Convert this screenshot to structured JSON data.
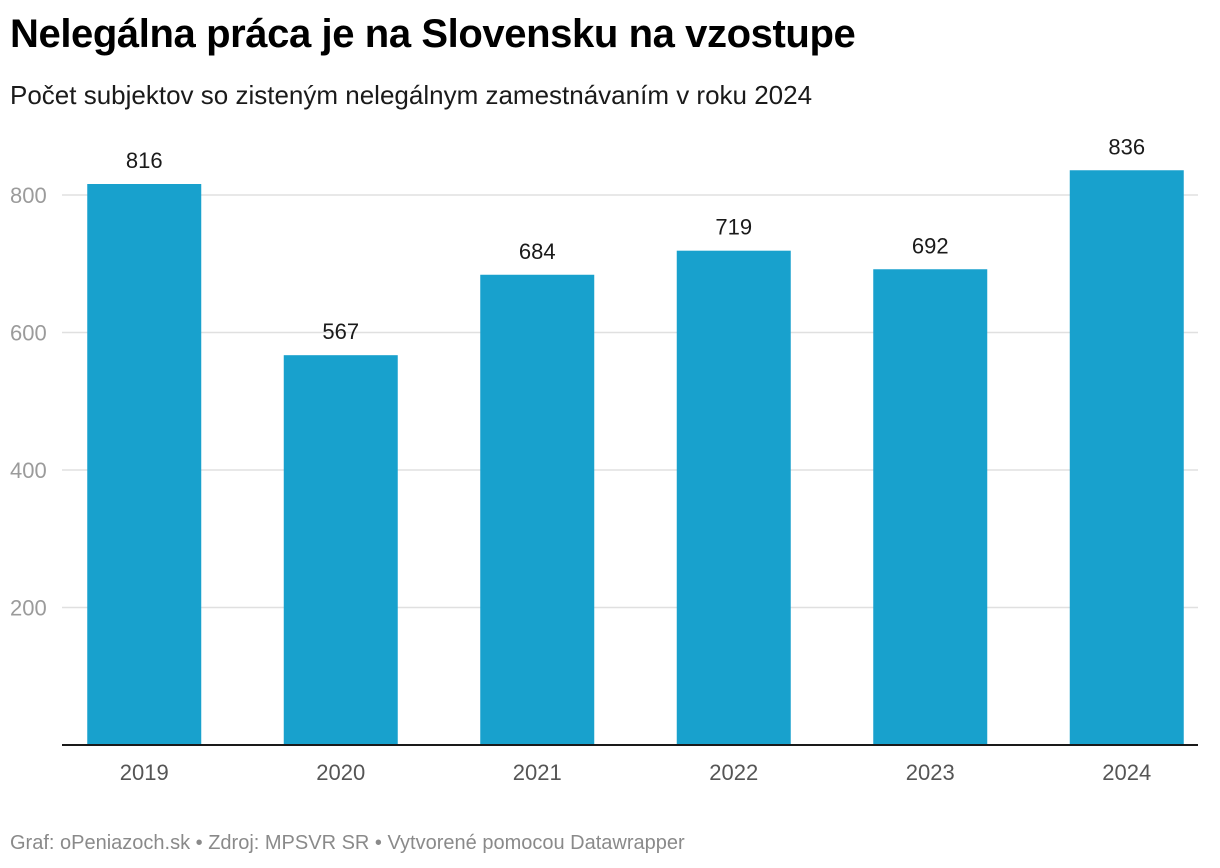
{
  "chart_data": {
    "type": "bar",
    "title": "Nelegálna práca je na Slovensku na vzostupe",
    "subtitle": "Počet subjektov so zisteným nelegálnym zamestnávaním v roku 2024",
    "categories": [
      "2019",
      "2020",
      "2021",
      "2022",
      "2023",
      "2024"
    ],
    "values": [
      816,
      567,
      684,
      719,
      692,
      836
    ],
    "value_labels": [
      "816",
      "567",
      "684",
      "719",
      "692",
      "836"
    ],
    "yticks": [
      200,
      400,
      600,
      800
    ],
    "ytick_labels": [
      "200",
      "400",
      "600",
      "800"
    ],
    "ylim": [
      0,
      880
    ],
    "xlabel": "",
    "ylabel": "",
    "grid": true,
    "bar_color": "#18a1cd"
  },
  "footer": {
    "text": "Graf: oPeniazoch.sk • Zdroj: MPSVR SR • Vytvorené pomocou Datawrapper"
  }
}
